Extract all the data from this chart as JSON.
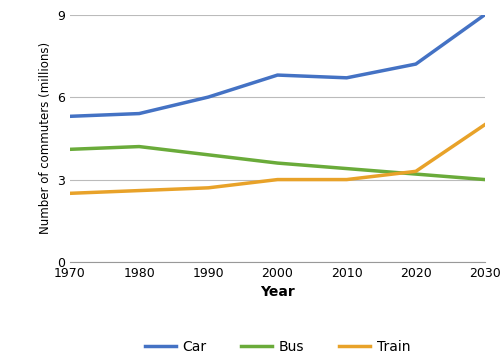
{
  "years": [
    1970,
    1980,
    1990,
    2000,
    2010,
    2020,
    2030
  ],
  "car": [
    5.3,
    5.4,
    6.0,
    6.8,
    6.7,
    7.2,
    9.0
  ],
  "bus": [
    4.1,
    4.2,
    3.9,
    3.6,
    3.4,
    3.2,
    3.0
  ],
  "train": [
    2.5,
    2.6,
    2.7,
    3.0,
    3.0,
    3.3,
    5.0
  ],
  "car_color": "#4472C4",
  "bus_color": "#6AAB3A",
  "train_color": "#E8A229",
  "xlabel": "Year",
  "ylabel": "Number of commuters (millions)",
  "ylim": [
    0,
    9
  ],
  "yticks": [
    0,
    3,
    6,
    9
  ],
  "xticks": [
    1970,
    1980,
    1990,
    2000,
    2010,
    2020,
    2030
  ],
  "legend_labels": [
    "Car",
    "Bus",
    "Train"
  ],
  "linewidth": 2.5,
  "background_color": "#ffffff",
  "grid_color": "#bbbbbb"
}
